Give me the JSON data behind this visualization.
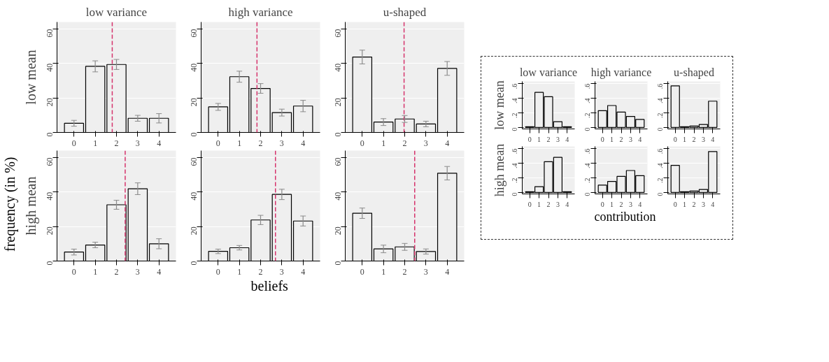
{
  "chart_data": [
    {
      "type": "bar",
      "title": "low variance",
      "ylabel": "low mean",
      "x": [
        0,
        1,
        2,
        3,
        4
      ],
      "values": [
        5.3,
        38.3,
        39.4,
        8.2,
        8.2
      ],
      "errors": [
        1.7,
        3.2,
        2.9,
        1.7,
        2.7
      ],
      "color": "#efefef",
      "xlim": [
        -0.8,
        4.8
      ],
      "xticks": [
        0,
        1,
        2,
        3,
        4
      ],
      "ylim": [
        0,
        64
      ],
      "yticks": [
        0,
        20,
        40,
        60
      ],
      "grid": "y",
      "ref_lines": [
        {
          "axis": "x",
          "value": 1.8,
          "color": "#d6336c",
          "line_style": "dashed"
        }
      ],
      "annotations": [
        "frequency (in %)",
        "beliefs"
      ]
    },
    {
      "type": "bar",
      "title": "high variance",
      "x": [
        0,
        1,
        2,
        3,
        4
      ],
      "values": [
        14.8,
        32.3,
        25.5,
        11.5,
        15.3
      ],
      "errors": [
        2.0,
        3.2,
        2.8,
        2.0,
        3.3
      ],
      "color": "#efefef",
      "xlim": [
        -0.8,
        4.8
      ],
      "xticks": [
        0,
        1,
        2,
        3,
        4
      ],
      "ylim": [
        0,
        64
      ],
      "yticks": [
        0,
        20,
        40,
        60
      ],
      "grid": "y",
      "ref_lines": [
        {
          "axis": "x",
          "value": 1.83,
          "color": "#d6336c",
          "line_style": "dashed"
        }
      ]
    },
    {
      "type": "bar",
      "title": "u-shaped",
      "x": [
        0,
        1,
        2,
        3,
        4
      ],
      "values": [
        43.7,
        6.0,
        7.8,
        4.9,
        37.1
      ],
      "errors": [
        4.0,
        2.0,
        2.0,
        1.6,
        4.0
      ],
      "color": "#efefef",
      "xlim": [
        -0.8,
        4.8
      ],
      "xticks": [
        0,
        1,
        2,
        3,
        4
      ],
      "ylim": [
        0,
        64
      ],
      "yticks": [
        0,
        20,
        40,
        60
      ],
      "grid": "y",
      "ref_lines": [
        {
          "axis": "x",
          "value": 1.97,
          "color": "#d6336c",
          "line_style": "dashed"
        }
      ]
    },
    {
      "type": "bar",
      "ylabel": "high mean",
      "x": [
        0,
        1,
        2,
        3,
        4
      ],
      "values": [
        5.2,
        9.3,
        32.6,
        41.9,
        10.0
      ],
      "errors": [
        1.7,
        1.6,
        2.6,
        3.4,
        2.9
      ],
      "color": "#efefef",
      "xlim": [
        -0.8,
        4.8
      ],
      "xticks": [
        0,
        1,
        2,
        3,
        4
      ],
      "ylim": [
        0,
        64
      ],
      "yticks": [
        0,
        20,
        40,
        60
      ],
      "grid": "y",
      "ref_lines": [
        {
          "axis": "x",
          "value": 2.41,
          "color": "#d6336c",
          "line_style": "dashed"
        }
      ]
    },
    {
      "type": "bar",
      "x": [
        0,
        1,
        2,
        3,
        4
      ],
      "values": [
        5.6,
        7.7,
        23.8,
        38.6,
        23.2
      ],
      "errors": [
        1.3,
        1.3,
        2.7,
        3.0,
        2.9
      ],
      "color": "#efefef",
      "xlim": [
        -0.8,
        4.8
      ],
      "xticks": [
        0,
        1,
        2,
        3,
        4
      ],
      "ylim": [
        0,
        64
      ],
      "yticks": [
        0,
        20,
        40,
        60
      ],
      "grid": "y",
      "ref_lines": [
        {
          "axis": "x",
          "value": 2.7,
          "color": "#d6336c",
          "line_style": "dashed"
        }
      ]
    },
    {
      "type": "bar",
      "x": [
        0,
        1,
        2,
        3,
        4
      ],
      "values": [
        27.7,
        7.0,
        8.2,
        5.5,
        50.9
      ],
      "errors": [
        3.0,
        2.2,
        2.0,
        1.5,
        3.9
      ],
      "color": "#efefef",
      "xlim": [
        -0.8,
        4.8
      ],
      "xticks": [
        0,
        1,
        2,
        3,
        4
      ],
      "ylim": [
        0,
        64
      ],
      "yticks": [
        0,
        20,
        40,
        60
      ],
      "grid": "y",
      "ref_lines": [
        {
          "axis": "x",
          "value": 2.47,
          "color": "#d6336c",
          "line_style": "dashed"
        }
      ]
    },
    {
      "type": "bar",
      "title": "low variance",
      "ylabel": "low mean",
      "x": [
        0,
        1,
        2,
        3,
        4
      ],
      "values": [
        0.01,
        0.48,
        0.42,
        0.08,
        0.01
      ],
      "color": "#efefef",
      "xlim": [
        -0.8,
        4.8
      ],
      "xticks": [
        0,
        1,
        2,
        3,
        4
      ],
      "ylim": [
        -0.02,
        0.63
      ],
      "yticks": [
        0,
        {
          "value": 0.2,
          "label": ".2"
        },
        {
          "value": 0.4,
          "label": ".4"
        },
        {
          "value": 0.6,
          "label": ".6"
        }
      ],
      "grid": "y"
    },
    {
      "type": "bar",
      "title": "high variance",
      "x": [
        0,
        1,
        2,
        3,
        4
      ],
      "values": [
        0.23,
        0.3,
        0.21,
        0.15,
        0.11
      ],
      "color": "#efefef",
      "xlim": [
        -0.8,
        4.8
      ],
      "xticks": [
        0,
        1,
        2,
        3,
        4
      ],
      "ylim": [
        -0.02,
        0.63
      ],
      "yticks": [
        0,
        {
          "value": 0.2,
          "label": ".2"
        },
        {
          "value": 0.4,
          "label": ".4"
        },
        {
          "value": 0.6,
          "label": ".6"
        }
      ],
      "grid": "y"
    },
    {
      "type": "bar",
      "title": "u-shaped",
      "x": [
        0,
        1,
        2,
        3,
        4
      ],
      "values": [
        0.57,
        0.01,
        0.02,
        0.04,
        0.36
      ],
      "color": "#efefef",
      "xlim": [
        -0.8,
        4.8
      ],
      "xticks": [
        0,
        1,
        2,
        3,
        4
      ],
      "ylim": [
        -0.02,
        0.63
      ],
      "yticks": [
        0,
        {
          "value": 0.2,
          "label": ".2"
        },
        {
          "value": 0.4,
          "label": ".4"
        },
        {
          "value": 0.6,
          "label": ".6"
        }
      ],
      "grid": "y"
    },
    {
      "type": "bar",
      "ylabel": "high mean",
      "x": [
        0,
        1,
        2,
        3,
        4
      ],
      "values": [
        0.01,
        0.08,
        0.42,
        0.48,
        0.01
      ],
      "color": "#efefef",
      "xlim": [
        -0.8,
        4.8
      ],
      "xticks": [
        0,
        1,
        2,
        3,
        4
      ],
      "ylim": [
        -0.02,
        0.63
      ],
      "yticks": [
        0,
        {
          "value": 0.2,
          "label": ".2"
        },
        {
          "value": 0.4,
          "label": ".4"
        },
        {
          "value": 0.6,
          "label": ".6"
        }
      ],
      "grid": "y",
      "annotations": [
        "contribution"
      ]
    },
    {
      "type": "bar",
      "x": [
        0,
        1,
        2,
        3,
        4
      ],
      "values": [
        0.1,
        0.15,
        0.22,
        0.3,
        0.23
      ],
      "color": "#efefef",
      "xlim": [
        -0.8,
        4.8
      ],
      "xticks": [
        0,
        1,
        2,
        3,
        4
      ],
      "ylim": [
        -0.02,
        0.63
      ],
      "yticks": [
        0,
        {
          "value": 0.2,
          "label": ".2"
        },
        {
          "value": 0.4,
          "label": ".4"
        },
        {
          "value": 0.6,
          "label": ".6"
        }
      ],
      "grid": "y"
    },
    {
      "type": "bar",
      "x": [
        0,
        1,
        2,
        3,
        4
      ],
      "values": [
        0.37,
        0.01,
        0.02,
        0.04,
        0.56
      ],
      "color": "#efefef",
      "xlim": [
        -0.8,
        4.8
      ],
      "xticks": [
        0,
        1,
        2,
        3,
        4
      ],
      "ylim": [
        -0.02,
        0.63
      ],
      "yticks": [
        0,
        {
          "value": 0.2,
          "label": ".2"
        },
        {
          "value": 0.4,
          "label": ".4"
        },
        {
          "value": 0.6,
          "label": ".6"
        }
      ],
      "grid": "y"
    }
  ]
}
